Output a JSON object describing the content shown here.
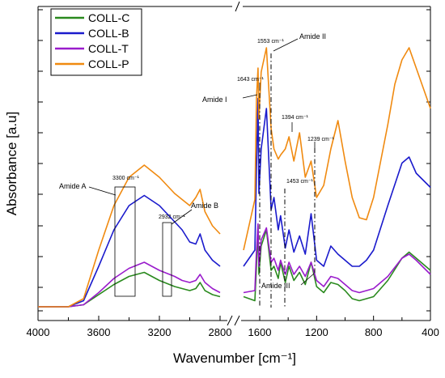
{
  "chart_data": {
    "type": "line",
    "xlabel": "Wavenumber [cm⁻¹]",
    "ylabel": "Absorbance [a.u]",
    "x_reversed": true,
    "x_break": [
      2800,
      2000
    ],
    "x_ticks": [
      "4000",
      "3600",
      "3200",
      "2800",
      "1600",
      "1200",
      "800",
      "400"
    ],
    "legend_position": "top-left",
    "series": [
      {
        "name": "COLL-C",
        "color": "#2a8a1e",
        "points": [
          [
            4000,
            0.02
          ],
          [
            3800,
            0.02
          ],
          [
            3700,
            0.03
          ],
          [
            3600,
            0.08
          ],
          [
            3500,
            0.13
          ],
          [
            3400,
            0.17
          ],
          [
            3300,
            0.19
          ],
          [
            3200,
            0.15
          ],
          [
            3100,
            0.12
          ],
          [
            3050,
            0.11
          ],
          [
            3000,
            0.1
          ],
          [
            2960,
            0.11
          ],
          [
            2932,
            0.14
          ],
          [
            2900,
            0.1
          ],
          [
            2850,
            0.08
          ],
          [
            2800,
            0.07
          ],
          [
            2000,
            0.07
          ],
          [
            1720,
            0.05
          ],
          [
            1680,
            0.22
          ],
          [
            1643,
            0.42
          ],
          [
            1620,
            0.18
          ],
          [
            1590,
            0.32
          ],
          [
            1553,
            0.4
          ],
          [
            1520,
            0.2
          ],
          [
            1500,
            0.22
          ],
          [
            1470,
            0.16
          ],
          [
            1453,
            0.24
          ],
          [
            1420,
            0.14
          ],
          [
            1394,
            0.22
          ],
          [
            1360,
            0.15
          ],
          [
            1320,
            0.19
          ],
          [
            1280,
            0.13
          ],
          [
            1239,
            0.24
          ],
          [
            1200,
            0.12
          ],
          [
            1150,
            0.09
          ],
          [
            1100,
            0.14
          ],
          [
            1050,
            0.13
          ],
          [
            1000,
            0.1
          ],
          [
            950,
            0.06
          ],
          [
            900,
            0.05
          ],
          [
            850,
            0.06
          ],
          [
            800,
            0.07
          ],
          [
            700,
            0.15
          ],
          [
            600,
            0.26
          ],
          [
            550,
            0.29
          ],
          [
            500,
            0.26
          ],
          [
            400,
            0.2
          ]
        ]
      },
      {
        "name": "COLL-B",
        "color": "#1a1acc",
        "points": [
          [
            4000,
            0.02
          ],
          [
            3800,
            0.02
          ],
          [
            3700,
            0.05
          ],
          [
            3600,
            0.22
          ],
          [
            3500,
            0.4
          ],
          [
            3400,
            0.52
          ],
          [
            3300,
            0.57
          ],
          [
            3200,
            0.52
          ],
          [
            3100,
            0.44
          ],
          [
            3050,
            0.4
          ],
          [
            3000,
            0.34
          ],
          [
            2960,
            0.33
          ],
          [
            2932,
            0.38
          ],
          [
            2900,
            0.3
          ],
          [
            2850,
            0.25
          ],
          [
            2800,
            0.22
          ],
          [
            2000,
            0.22
          ],
          [
            1720,
            0.3
          ],
          [
            1680,
            0.7
          ],
          [
            1643,
            1.05
          ],
          [
            1620,
            0.58
          ],
          [
            1590,
            0.8
          ],
          [
            1553,
            1.0
          ],
          [
            1520,
            0.5
          ],
          [
            1500,
            0.56
          ],
          [
            1470,
            0.4
          ],
          [
            1453,
            0.47
          ],
          [
            1420,
            0.31
          ],
          [
            1394,
            0.4
          ],
          [
            1360,
            0.29
          ],
          [
            1320,
            0.37
          ],
          [
            1280,
            0.28
          ],
          [
            1239,
            0.48
          ],
          [
            1200,
            0.25
          ],
          [
            1150,
            0.22
          ],
          [
            1100,
            0.32
          ],
          [
            1050,
            0.28
          ],
          [
            1000,
            0.25
          ],
          [
            950,
            0.22
          ],
          [
            900,
            0.22
          ],
          [
            850,
            0.25
          ],
          [
            800,
            0.3
          ],
          [
            700,
            0.52
          ],
          [
            600,
            0.73
          ],
          [
            550,
            0.76
          ],
          [
            500,
            0.68
          ],
          [
            400,
            0.61
          ]
        ]
      },
      {
        "name": "COLL-T",
        "color": "#9a1ccc",
        "points": [
          [
            4000,
            0.02
          ],
          [
            3800,
            0.02
          ],
          [
            3700,
            0.03
          ],
          [
            3600,
            0.09
          ],
          [
            3500,
            0.16
          ],
          [
            3400,
            0.21
          ],
          [
            3300,
            0.24
          ],
          [
            3200,
            0.2
          ],
          [
            3100,
            0.17
          ],
          [
            3050,
            0.15
          ],
          [
            3000,
            0.14
          ],
          [
            2960,
            0.15
          ],
          [
            2932,
            0.18
          ],
          [
            2900,
            0.14
          ],
          [
            2850,
            0.11
          ],
          [
            2800,
            0.09
          ],
          [
            2000,
            0.09
          ],
          [
            1720,
            0.1
          ],
          [
            1680,
            0.3
          ],
          [
            1643,
            0.43
          ],
          [
            1620,
            0.22
          ],
          [
            1590,
            0.35
          ],
          [
            1553,
            0.41
          ],
          [
            1520,
            0.24
          ],
          [
            1500,
            0.26
          ],
          [
            1470,
            0.2
          ],
          [
            1453,
            0.25
          ],
          [
            1420,
            0.18
          ],
          [
            1394,
            0.24
          ],
          [
            1360,
            0.18
          ],
          [
            1320,
            0.22
          ],
          [
            1280,
            0.17
          ],
          [
            1239,
            0.24
          ],
          [
            1200,
            0.15
          ],
          [
            1150,
            0.12
          ],
          [
            1100,
            0.17
          ],
          [
            1050,
            0.16
          ],
          [
            1000,
            0.13
          ],
          [
            950,
            0.1
          ],
          [
            900,
            0.09
          ],
          [
            850,
            0.1
          ],
          [
            800,
            0.11
          ],
          [
            700,
            0.17
          ],
          [
            600,
            0.26
          ],
          [
            550,
            0.28
          ],
          [
            500,
            0.25
          ],
          [
            400,
            0.18
          ]
        ]
      },
      {
        "name": "COLL-P",
        "color": "#f08a10",
        "points": [
          [
            4000,
            0.02
          ],
          [
            3800,
            0.02
          ],
          [
            3700,
            0.06
          ],
          [
            3600,
            0.3
          ],
          [
            3500,
            0.52
          ],
          [
            3400,
            0.66
          ],
          [
            3300,
            0.72
          ],
          [
            3200,
            0.66
          ],
          [
            3100,
            0.58
          ],
          [
            3050,
            0.55
          ],
          [
            3000,
            0.52
          ],
          [
            2960,
            0.56
          ],
          [
            2932,
            0.6
          ],
          [
            2900,
            0.49
          ],
          [
            2850,
            0.42
          ],
          [
            2800,
            0.38
          ],
          [
            2700,
            0.3
          ],
          [
            2000,
            0.3
          ],
          [
            1720,
            0.55
          ],
          [
            1680,
            1.05
          ],
          [
            1643,
            1.2
          ],
          [
            1620,
            0.95
          ],
          [
            1590,
            1.18
          ],
          [
            1553,
            1.3
          ],
          [
            1520,
            0.9
          ],
          [
            1500,
            0.8
          ],
          [
            1470,
            0.75
          ],
          [
            1453,
            0.77
          ],
          [
            1420,
            0.8
          ],
          [
            1394,
            0.86
          ],
          [
            1360,
            0.74
          ],
          [
            1320,
            0.88
          ],
          [
            1280,
            0.66
          ],
          [
            1239,
            0.74
          ],
          [
            1200,
            0.56
          ],
          [
            1150,
            0.62
          ],
          [
            1100,
            0.8
          ],
          [
            1050,
            0.94
          ],
          [
            1000,
            0.74
          ],
          [
            950,
            0.56
          ],
          [
            900,
            0.46
          ],
          [
            850,
            0.45
          ],
          [
            800,
            0.56
          ],
          [
            700,
            0.92
          ],
          [
            650,
            1.12
          ],
          [
            600,
            1.24
          ],
          [
            550,
            1.3
          ],
          [
            500,
            1.2
          ],
          [
            400,
            1.0
          ]
        ]
      }
    ],
    "annotations": {
      "amide_a": "Amide A",
      "peak_3300": "3300 cm⁻¹",
      "amide_b": "Amide B",
      "peak_2932": "2932 cm⁻¹",
      "amide_i": "Amide I",
      "peak_1643": "1643 cm⁻¹",
      "peak_1553": "1553 cm⁻¹",
      "amide_ii": "Amide II",
      "peak_1394": "1394 cm⁻¹",
      "peak_1239": "1239 cm⁻¹",
      "peak_1453": "1453 cm⁻¹",
      "amide_iii": "Amide III"
    }
  }
}
